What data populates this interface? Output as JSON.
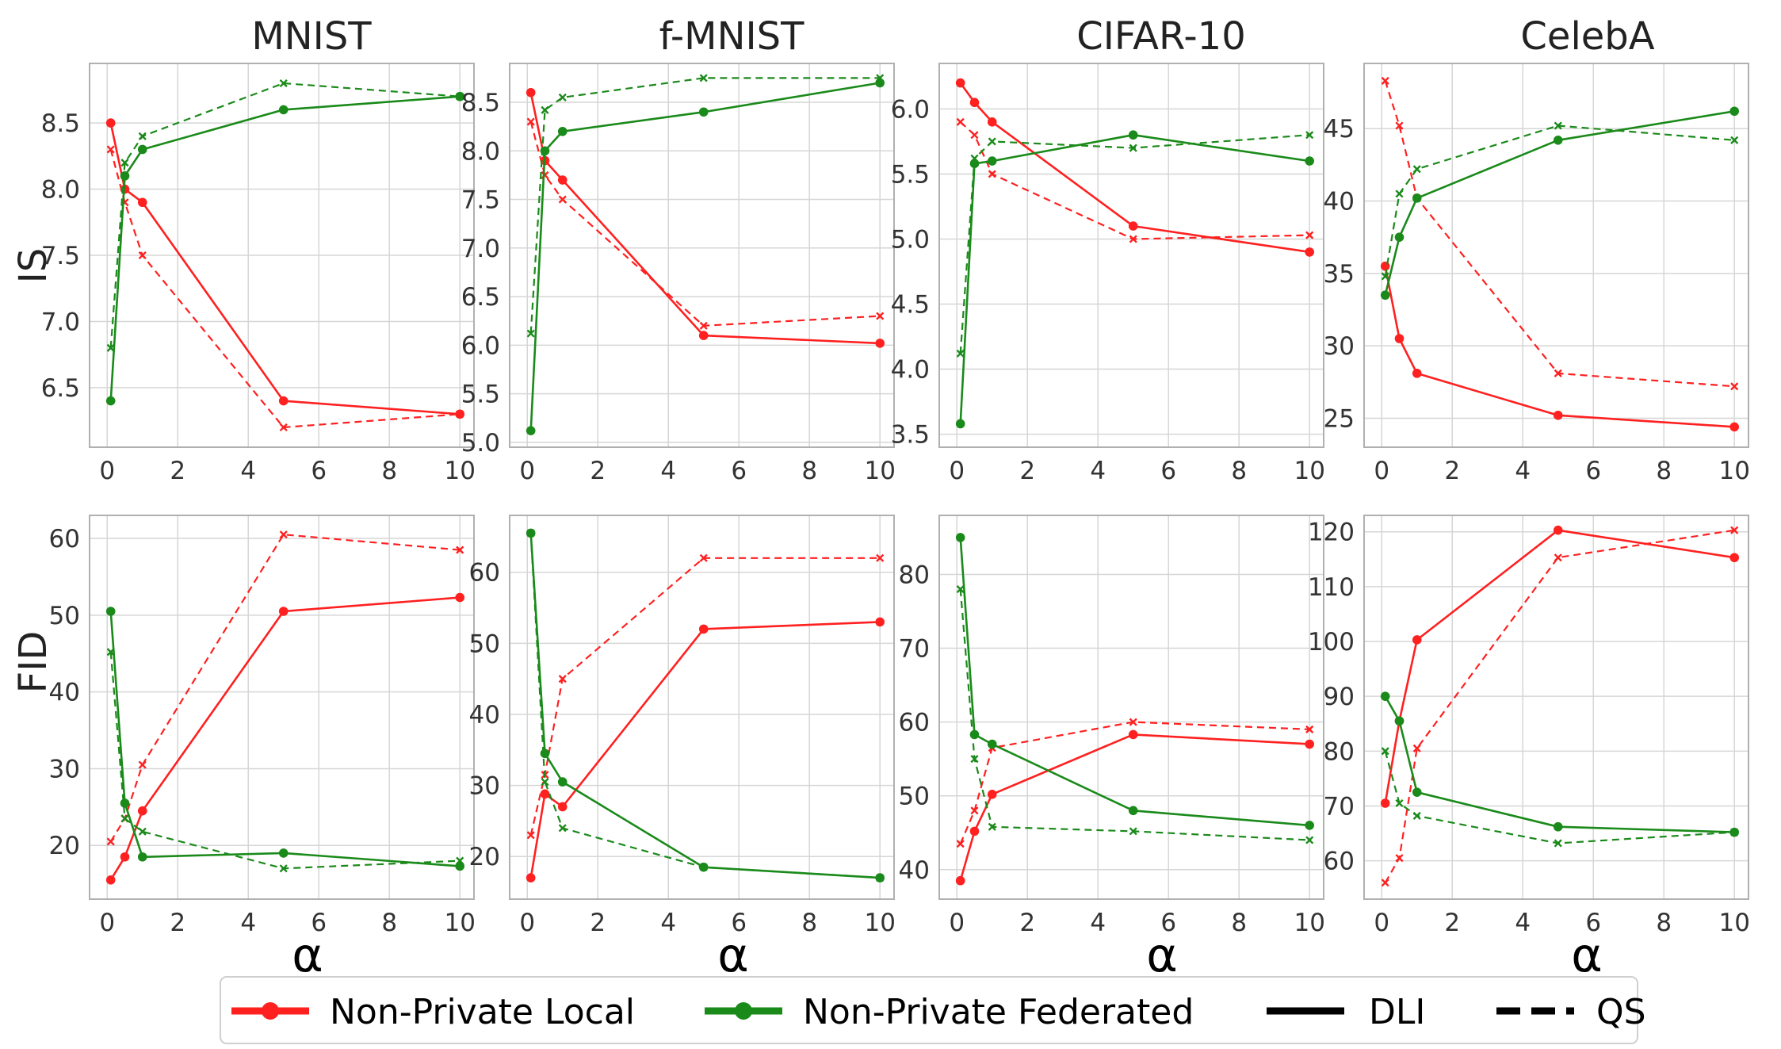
{
  "colors": {
    "local": "#ff2020",
    "federated": "#1a8a1a",
    "method": "#000000"
  },
  "legend": {
    "entries": [
      {
        "label": "Non-Private Local",
        "kind": "series",
        "color": "#ff2020",
        "style": "solid-marker"
      },
      {
        "label": "Non-Private Federated",
        "kind": "series",
        "color": "#1a8a1a",
        "style": "solid-marker"
      },
      {
        "label": "DLI",
        "kind": "method",
        "color": "#000000",
        "style": "solid"
      },
      {
        "label": "QS",
        "kind": "method",
        "color": "#000000",
        "style": "dashed"
      }
    ]
  },
  "column_titles": [
    "MNIST",
    "f-MNIST",
    "CIFAR-10",
    "CelebA"
  ],
  "row_labels": [
    "IS",
    "FID"
  ],
  "x_axis_symbol": "α",
  "chart_data": [
    {
      "type": "line",
      "row": 0,
      "col": 0,
      "dataset": "MNIST",
      "metric": "IS",
      "xlim": [
        -0.5,
        10.4
      ],
      "ylim": [
        6.05,
        8.95
      ],
      "xticks": [
        0,
        2,
        4,
        6,
        8,
        10
      ],
      "yticks": [
        6.5,
        7.0,
        7.5,
        8.0,
        8.5
      ],
      "grid": true,
      "x": [
        0.1,
        0.5,
        1,
        5,
        10
      ],
      "series": [
        {
          "name": "Non-Private Local",
          "method": "DLI",
          "values": [
            8.5,
            8.0,
            7.9,
            6.4,
            6.3
          ]
        },
        {
          "name": "Non-Private Local",
          "method": "QS",
          "values": [
            8.3,
            7.9,
            7.5,
            6.2,
            6.3
          ]
        },
        {
          "name": "Non-Private Federated",
          "method": "DLI",
          "values": [
            6.4,
            8.1,
            8.3,
            8.6,
            8.7
          ]
        },
        {
          "name": "Non-Private Federated",
          "method": "QS",
          "values": [
            6.8,
            8.2,
            8.4,
            8.8,
            8.7
          ]
        }
      ]
    },
    {
      "type": "line",
      "row": 0,
      "col": 1,
      "dataset": "f-MNIST",
      "metric": "IS",
      "xlim": [
        -0.5,
        10.4
      ],
      "ylim": [
        4.95,
        8.9
      ],
      "xticks": [
        0,
        2,
        4,
        6,
        8,
        10
      ],
      "yticks": [
        5.0,
        5.5,
        6.0,
        6.5,
        7.0,
        7.5,
        8.0,
        8.5
      ],
      "grid": true,
      "x": [
        0.1,
        0.5,
        1,
        5,
        10
      ],
      "series": [
        {
          "name": "Non-Private Local",
          "method": "DLI",
          "values": [
            8.6,
            7.9,
            7.7,
            6.1,
            6.02
          ]
        },
        {
          "name": "Non-Private Local",
          "method": "QS",
          "values": [
            8.3,
            7.75,
            7.5,
            6.2,
            6.3
          ]
        },
        {
          "name": "Non-Private Federated",
          "method": "DLI",
          "values": [
            5.12,
            8.0,
            8.2,
            8.4,
            8.7
          ]
        },
        {
          "name": "Non-Private Federated",
          "method": "QS",
          "values": [
            6.12,
            8.42,
            8.55,
            8.75,
            8.75
          ]
        }
      ]
    },
    {
      "type": "line",
      "row": 0,
      "col": 2,
      "dataset": "CIFAR-10",
      "metric": "IS",
      "xlim": [
        -0.5,
        10.4
      ],
      "ylim": [
        3.4,
        6.35
      ],
      "xticks": [
        0,
        2,
        4,
        6,
        8,
        10
      ],
      "yticks": [
        3.5,
        4.0,
        4.5,
        5.0,
        5.5,
        6.0
      ],
      "grid": true,
      "x": [
        0.1,
        0.5,
        1,
        5,
        10
      ],
      "series": [
        {
          "name": "Non-Private Local",
          "method": "DLI",
          "values": [
            6.2,
            6.05,
            5.9,
            5.1,
            4.9
          ]
        },
        {
          "name": "Non-Private Local",
          "method": "QS",
          "values": [
            5.9,
            5.8,
            5.5,
            5.0,
            5.03
          ]
        },
        {
          "name": "Non-Private Federated",
          "method": "DLI",
          "values": [
            3.58,
            5.58,
            5.6,
            5.8,
            5.6
          ]
        },
        {
          "name": "Non-Private Federated",
          "method": "QS",
          "values": [
            4.12,
            5.62,
            5.75,
            5.7,
            5.8
          ]
        }
      ]
    },
    {
      "type": "line",
      "row": 0,
      "col": 3,
      "dataset": "CelebA",
      "metric": "IS",
      "xlim": [
        -0.5,
        10.4
      ],
      "ylim": [
        23.0,
        49.5
      ],
      "xticks": [
        0,
        2,
        4,
        6,
        8,
        10
      ],
      "yticks": [
        25,
        30,
        35,
        40,
        45
      ],
      "grid": true,
      "x": [
        0.1,
        0.5,
        1,
        5,
        10
      ],
      "series": [
        {
          "name": "Non-Private Local",
          "method": "DLI",
          "values": [
            35.5,
            30.5,
            28.1,
            25.2,
            24.4
          ]
        },
        {
          "name": "Non-Private Local",
          "method": "QS",
          "values": [
            48.3,
            45.2,
            40.2,
            28.1,
            27.2
          ]
        },
        {
          "name": "Non-Private Federated",
          "method": "DLI",
          "values": [
            33.5,
            37.5,
            40.2,
            44.2,
            46.2
          ]
        },
        {
          "name": "Non-Private Federated",
          "method": "QS",
          "values": [
            34.8,
            40.5,
            42.2,
            45.2,
            44.2
          ]
        }
      ]
    },
    {
      "type": "line",
      "row": 1,
      "col": 0,
      "dataset": "MNIST",
      "metric": "FID",
      "xlim": [
        -0.5,
        10.4
      ],
      "ylim": [
        13.0,
        63.0
      ],
      "xticks": [
        0,
        2,
        4,
        6,
        8,
        10
      ],
      "yticks": [
        20,
        30,
        40,
        50,
        60
      ],
      "grid": true,
      "x": [
        0.1,
        0.5,
        1,
        5,
        10
      ],
      "series": [
        {
          "name": "Non-Private Local",
          "method": "DLI",
          "values": [
            15.5,
            18.5,
            24.5,
            50.5,
            52.3
          ]
        },
        {
          "name": "Non-Private Local",
          "method": "QS",
          "values": [
            20.5,
            23.5,
            30.5,
            60.5,
            58.5
          ]
        },
        {
          "name": "Non-Private Federated",
          "method": "DLI",
          "values": [
            50.5,
            25.5,
            18.5,
            19.0,
            17.3
          ]
        },
        {
          "name": "Non-Private Federated",
          "method": "QS",
          "values": [
            45.2,
            23.5,
            21.8,
            17.0,
            18.0
          ]
        }
      ]
    },
    {
      "type": "line",
      "row": 1,
      "col": 1,
      "dataset": "f-MNIST",
      "metric": "FID",
      "xlim": [
        -0.5,
        10.4
      ],
      "ylim": [
        14.0,
        68.0
      ],
      "xticks": [
        0,
        2,
        4,
        6,
        8,
        10
      ],
      "yticks": [
        20,
        30,
        40,
        50,
        60
      ],
      "grid": true,
      "x": [
        0.1,
        0.5,
        1,
        5,
        10
      ],
      "series": [
        {
          "name": "Non-Private Local",
          "method": "DLI",
          "values": [
            17.0,
            28.8,
            27.0,
            52.0,
            53.0
          ]
        },
        {
          "name": "Non-Private Local",
          "method": "QS",
          "values": [
            23.0,
            31.5,
            45.0,
            62.0,
            62.0
          ]
        },
        {
          "name": "Non-Private Federated",
          "method": "DLI",
          "values": [
            65.5,
            34.5,
            30.5,
            18.5,
            17.0
          ]
        },
        {
          "name": "Non-Private Federated",
          "method": "QS",
          "values": [
            65.5,
            30.5,
            24.0,
            18.5,
            17.0
          ]
        }
      ]
    },
    {
      "type": "line",
      "row": 1,
      "col": 2,
      "dataset": "CIFAR-10",
      "metric": "FID",
      "xlim": [
        -0.5,
        10.4
      ],
      "ylim": [
        36.0,
        88.0
      ],
      "xticks": [
        0,
        2,
        4,
        6,
        8,
        10
      ],
      "yticks": [
        40,
        50,
        60,
        70,
        80
      ],
      "grid": true,
      "x": [
        0.1,
        0.5,
        1,
        5,
        10
      ],
      "series": [
        {
          "name": "Non-Private Local",
          "method": "DLI",
          "values": [
            38.5,
            45.2,
            50.2,
            58.3,
            57.0
          ]
        },
        {
          "name": "Non-Private Local",
          "method": "QS",
          "values": [
            43.5,
            48.0,
            56.5,
            60.0,
            59.0
          ]
        },
        {
          "name": "Non-Private Federated",
          "method": "DLI",
          "values": [
            85.0,
            58.3,
            57.0,
            48.0,
            46.0
          ]
        },
        {
          "name": "Non-Private Federated",
          "method": "QS",
          "values": [
            78.0,
            55.0,
            45.8,
            45.2,
            44.0
          ]
        }
      ]
    },
    {
      "type": "line",
      "row": 1,
      "col": 3,
      "dataset": "CelebA",
      "metric": "FID",
      "xlim": [
        -0.5,
        10.4
      ],
      "ylim": [
        53.0,
        123.0
      ],
      "xticks": [
        0,
        2,
        4,
        6,
        8,
        10
      ],
      "yticks": [
        60,
        70,
        80,
        90,
        100,
        110,
        120
      ],
      "grid": true,
      "x": [
        0.1,
        0.5,
        1,
        5,
        10
      ],
      "series": [
        {
          "name": "Non-Private Local",
          "method": "DLI",
          "values": [
            70.5,
            85.5,
            100.3,
            120.3,
            115.3
          ]
        },
        {
          "name": "Non-Private Local",
          "method": "QS",
          "values": [
            56.0,
            60.5,
            80.5,
            115.3,
            120.3
          ]
        },
        {
          "name": "Non-Private Federated",
          "method": "DLI",
          "values": [
            90.0,
            85.5,
            72.5,
            66.2,
            65.2
          ]
        },
        {
          "name": "Non-Private Federated",
          "method": "QS",
          "values": [
            80.0,
            70.5,
            68.2,
            63.2,
            65.2
          ]
        }
      ]
    }
  ]
}
